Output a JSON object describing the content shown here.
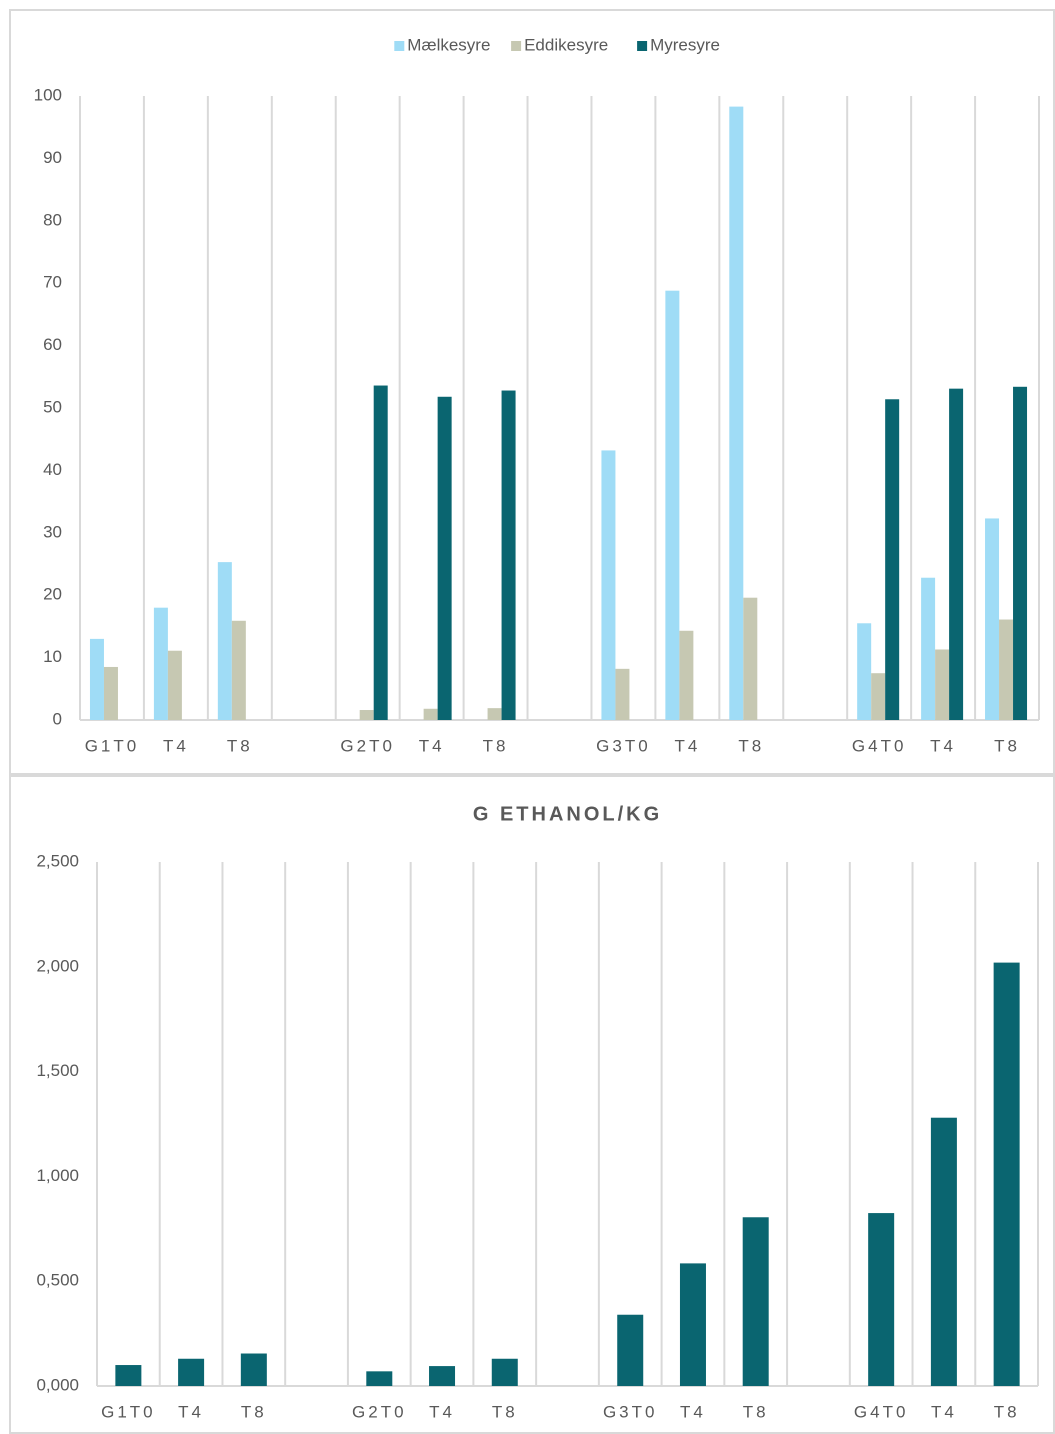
{
  "chart_data": [
    {
      "type": "bar",
      "categories": [
        "G1T0",
        "T4",
        "T8",
        null,
        "G2T0",
        "T4",
        "T8",
        null,
        "G3T0",
        "T4",
        "T8",
        null,
        "G4T0",
        "T4",
        "T8"
      ],
      "series": [
        {
          "name": "Mælkesyre",
          "color": "#9fdcf6",
          "values": [
            13,
            18,
            25.3,
            null,
            null,
            null,
            null,
            null,
            43.2,
            68.8,
            98.3,
            null,
            15.5,
            22.8,
            32.3
          ]
        },
        {
          "name": "Eddikesyre",
          "color": "#c6c8b2",
          "values": [
            8.5,
            11.1,
            15.9,
            null,
            1.6,
            1.8,
            1.9,
            null,
            8.2,
            14.3,
            19.6,
            null,
            7.5,
            11.3,
            16.1
          ]
        },
        {
          "name": "Myresyre",
          "color": "#0a6570",
          "values": [
            null,
            null,
            null,
            null,
            53.6,
            51.8,
            52.8,
            null,
            null,
            null,
            null,
            null,
            51.4,
            53.1,
            53.4
          ]
        }
      ],
      "ylim": [
        0,
        100
      ],
      "yticks": [
        0,
        10,
        20,
        30,
        40,
        50,
        60,
        70,
        80,
        90,
        100
      ],
      "legend": "top",
      "grid": "vertical"
    },
    {
      "type": "bar",
      "title": "G ETHANOL/KG",
      "categories": [
        "G1T0",
        "T4",
        "T8",
        null,
        "G2T0",
        "T4",
        "T8",
        null,
        "G3T0",
        "T4",
        "T8",
        null,
        "G4T0",
        "T4",
        "T8"
      ],
      "values": [
        0.1,
        0.13,
        0.155,
        null,
        0.07,
        0.095,
        0.13,
        null,
        0.34,
        0.585,
        0.805,
        null,
        0.825,
        1.28,
        2.02
      ],
      "color": "#0a6570",
      "ylim": [
        0,
        2.5
      ],
      "yticks": [
        {
          "value": 0,
          "label": "0,000"
        },
        {
          "value": 0.5,
          "label": "0,500"
        },
        {
          "value": 1,
          "label": "1,000"
        },
        {
          "value": 1.5,
          "label": "1,500"
        },
        {
          "value": 2,
          "label": "2,000"
        },
        {
          "value": 2.5,
          "label": "2,500"
        }
      ],
      "grid": "vertical"
    }
  ]
}
